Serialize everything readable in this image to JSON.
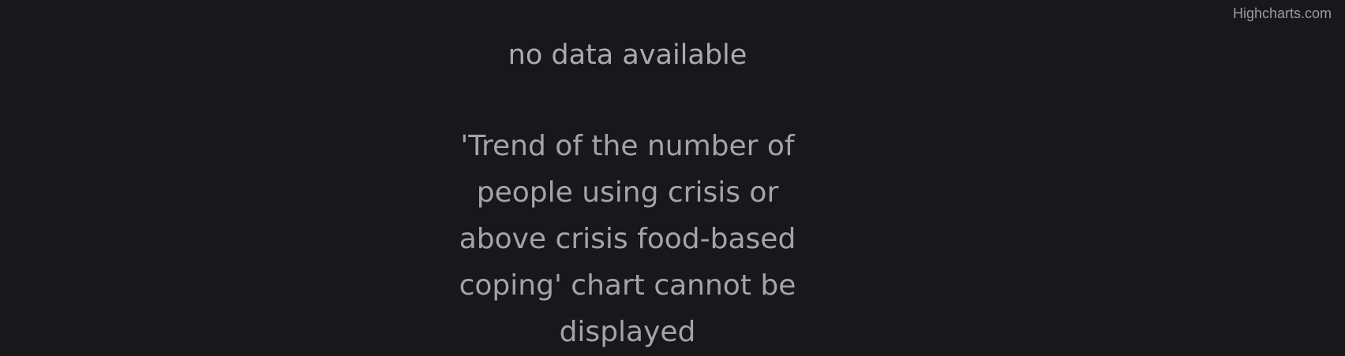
{
  "credits": {
    "label": "Highcharts.com"
  },
  "chart_data": {
    "type": "line",
    "title": "no data available",
    "message": "'Trend of the number of people using crisis or above crisis food-based coping' chart cannot be displayed",
    "series": []
  },
  "colors": {
    "background": "#18181b",
    "text": "#a9a9ad"
  }
}
